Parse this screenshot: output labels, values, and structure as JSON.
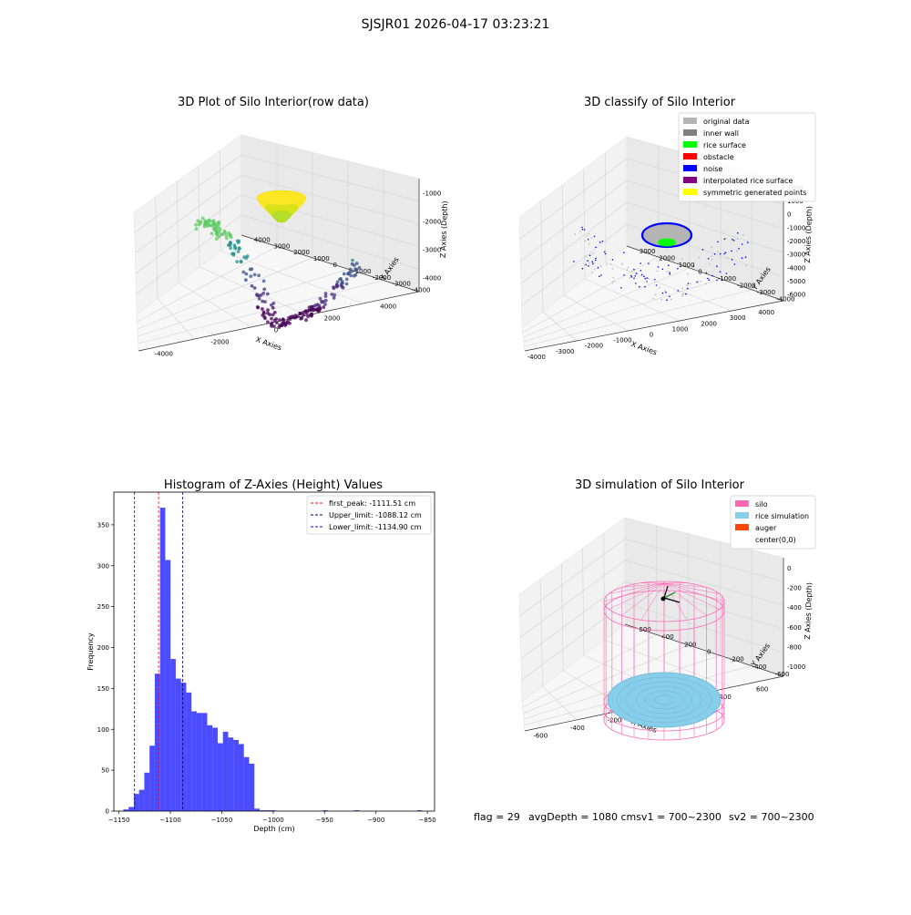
{
  "figure_title": "SJSJR01 2026-04-17 03:23:21",
  "footer": {
    "flag": "flag = 29",
    "avg_sv1": "avgDepth = 1080 cmsv1 = 700~2300",
    "sv2": "sv2 = 700~2300"
  },
  "colors": {
    "original_data": "#b4b4b4",
    "inner_wall": "#808080",
    "rice_surface": "#00ff00",
    "obstacle": "#ff0000",
    "noise": "#0000ff",
    "interpolated": "#800080",
    "symmetric": "#ffff00",
    "silo": "#ff69b4",
    "rice_sim": "#87ceeb",
    "auger": "#ff4500",
    "histogram": "#0000ff",
    "first_peak_line": "#ff0000",
    "upper_line": "#000080",
    "lower_line": "#0000ff"
  },
  "chart_data": [
    {
      "type": "scatter3d",
      "title": "3D Plot of Silo Interior(row data)",
      "xlabel": "X Axies",
      "ylabel": "Y Axies",
      "zlabel": "Z Axies (Depth)",
      "x_ticks": [
        "-4000",
        "-2000",
        "0",
        "2000",
        "4000"
      ],
      "y_ticks": [
        "4000",
        "3000",
        "2000",
        "1000",
        "0",
        "-1000",
        "-2000",
        "-3000",
        "-4000"
      ],
      "z_ticks": [
        "-1000",
        "-2000",
        "-3000",
        "-4000"
      ],
      "colormap": "viridis",
      "grid": true
    },
    {
      "type": "scatter3d",
      "title": "3D classify of Silo Interior",
      "xlabel": "X Axies",
      "ylabel": "Y Axies",
      "zlabel": "Z Axies (Depth)",
      "x_ticks": [
        "-4000",
        "-3000",
        "-2000",
        "-1000",
        "0",
        "1000",
        "2000",
        "3000",
        "4000"
      ],
      "y_ticks": [
        "3000",
        "2000",
        "1000",
        "0",
        "-1000",
        "-2000",
        "-3000",
        "-4000"
      ],
      "z_ticks": [
        "2000",
        "1000",
        "0",
        "-1000",
        "-2000",
        "-3000",
        "-4000",
        "-5000",
        "-6000"
      ],
      "legend_position": "top-right",
      "legend": [
        {
          "label": "original data",
          "color": "#b4b4b4"
        },
        {
          "label": "inner wall",
          "color": "#808080"
        },
        {
          "label": "rice surface",
          "color": "#00ff00"
        },
        {
          "label": "obstacle",
          "color": "#ff0000"
        },
        {
          "label": "noise",
          "color": "#0000ff"
        },
        {
          "label": "interpolated rice surface",
          "color": "#800080"
        },
        {
          "label": "symmetric generated points",
          "color": "#ffff00"
        }
      ],
      "grid": true
    },
    {
      "type": "bar",
      "title": "Histogram of Z-Axies (Height) Values",
      "xlabel": "Depth (cm)",
      "ylabel": "Frequency",
      "xlim": [
        -1155,
        -843
      ],
      "ylim": [
        0,
        390
      ],
      "x_ticks": [
        -1150,
        -1100,
        -1050,
        -1000,
        -950,
        -900,
        -850
      ],
      "x_tick_labels": [
        "−1150",
        "−1100",
        "−1050",
        "−1000",
        "−950",
        "−900",
        "−850"
      ],
      "y_ticks": [
        0,
        50,
        100,
        150,
        200,
        250,
        300,
        350
      ],
      "y_tick_labels": [
        "0",
        "50",
        "100",
        "150",
        "200",
        "250",
        "300",
        "350"
      ],
      "bin_width": 5.1,
      "bin_starts": [
        -1145.8,
        -1140.7,
        -1135.6,
        -1130.5,
        -1125.4,
        -1120.3,
        -1115.2,
        -1110.1,
        -1105.0,
        -1099.9,
        -1094.8,
        -1089.7,
        -1084.6,
        -1079.5,
        -1074.4,
        -1069.3,
        -1064.2,
        -1059.1,
        -1054.0,
        -1048.9,
        -1043.8,
        -1038.7,
        -1033.6,
        -1028.5,
        -1023.4,
        -1018.3,
        -1013.2,
        -1008.1,
        -1003.0,
        -952.0,
        -921.4,
        -860.2
      ],
      "values": [
        2,
        5,
        21,
        26,
        47,
        80,
        168,
        371,
        307,
        186,
        162,
        157,
        145,
        122,
        120,
        120,
        105,
        102,
        83,
        97,
        90,
        87,
        82,
        66,
        58,
        3,
        1,
        1,
        1,
        1,
        1,
        1
      ],
      "legend_position": "top-right",
      "lines": [
        {
          "label": "first_peak: -1111.51 cm",
          "x": -1111.51,
          "color": "#ff0000"
        },
        {
          "label": "Upper_limit: -1088.12 cm",
          "x": -1088.12,
          "color": "#000080"
        },
        {
          "label": "Lower_limit: -1134.90 cm",
          "x": -1134.9,
          "color": "#0000ff"
        }
      ],
      "grid": false
    },
    {
      "type": "surface3d",
      "title": "3D simulation of Silo Interior",
      "xlabel": "X Axies",
      "ylabel": "Y Axies",
      "zlabel": "Z Axies (Depth)",
      "x_ticks": [
        "-600",
        "-400",
        "-200",
        "0",
        "200",
        "400",
        "600"
      ],
      "y_ticks": [
        "600",
        "400",
        "200",
        "0",
        "-200",
        "-400",
        "-600"
      ],
      "z_ticks": [
        "0",
        "-200",
        "-400",
        "-600",
        "-800",
        "-1000"
      ],
      "legend_position": "top-right",
      "legend": [
        {
          "label": "silo",
          "color": "#ff69b4"
        },
        {
          "label": "rice simulation",
          "color": "#87ceeb"
        },
        {
          "label": "auger",
          "color": "#ff4500"
        },
        {
          "label": "center(0,0)",
          "color": ""
        }
      ],
      "grid": true
    }
  ]
}
